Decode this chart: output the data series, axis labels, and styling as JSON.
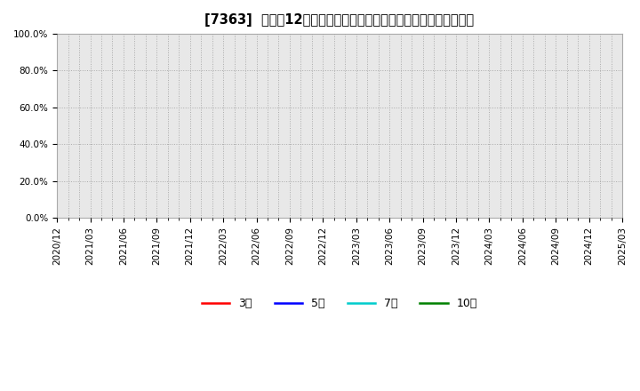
{
  "title": "[7363]  売上高12か月移動合計の対前年同期増減率の平均値の推移",
  "background_color": "#ffffff",
  "plot_bg_color": "#e8e8e8",
  "ylim": [
    0.0,
    1.0
  ],
  "yticks": [
    0.0,
    0.2,
    0.4,
    0.6,
    0.8,
    1.0
  ],
  "ytick_labels": [
    "0.0%",
    "20.0%",
    "40.0%",
    "60.0%",
    "80.0%",
    "100.0%"
  ],
  "xtick_labels": [
    "2020/12",
    "2021/03",
    "2021/06",
    "2021/09",
    "2021/12",
    "2022/03",
    "2022/06",
    "2022/09",
    "2022/12",
    "2023/03",
    "2023/06",
    "2023/09",
    "2023/12",
    "2024/03",
    "2024/06",
    "2024/09",
    "2024/12",
    "2025/03"
  ],
  "series": [
    {
      "label": "3年",
      "color": "#ff0000",
      "data": []
    },
    {
      "label": "5年",
      "color": "#0000ff",
      "data": []
    },
    {
      "label": "7年",
      "color": "#00cccc",
      "data": []
    },
    {
      "label": "10年",
      "color": "#008000",
      "data": []
    }
  ],
  "grid_color": "#aaaaaa",
  "grid_linestyle": ":",
  "grid_linewidth": 0.7,
  "title_fontsize": 10.5,
  "tick_fontsize": 7.5,
  "legend_fontsize": 9,
  "spine_color": "#aaaaaa"
}
